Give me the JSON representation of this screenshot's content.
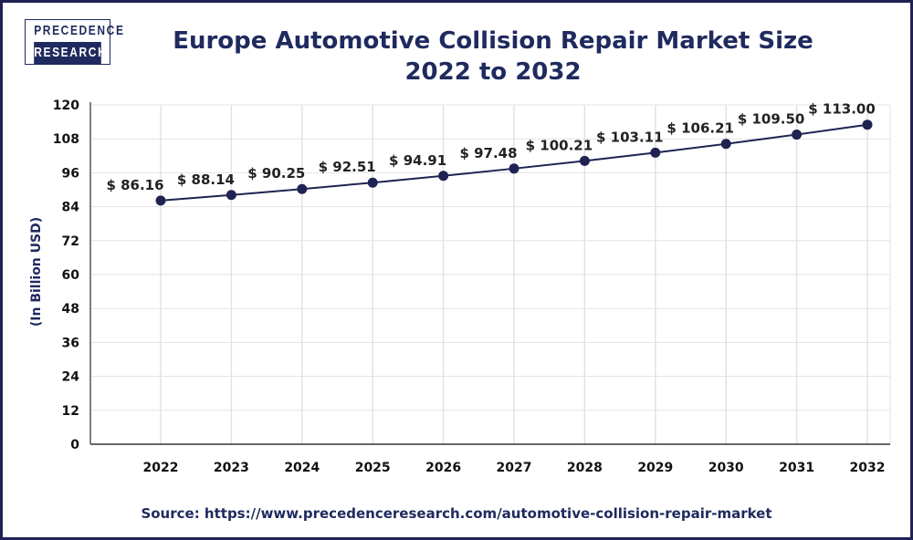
{
  "logo": {
    "line1": "PRECEDENCE",
    "line2": "RESEARCH"
  },
  "colors": {
    "line": "#1f2353",
    "title": "#1f2a5e",
    "grid": "#e3e3e3"
  },
  "source": "Source: https://www.precedenceresearch.com/automotive-collision-repair-market",
  "chart_data": {
    "type": "line",
    "title": "Europe Automotive Collision Repair Market Size",
    "subtitle": "2022 to 2032",
    "ylabel": "(In Billion USD)",
    "xlabel": "",
    "ylim": [
      0,
      120
    ],
    "yticks": [
      "0",
      "12",
      "24",
      "36",
      "48",
      "60",
      "72",
      "84",
      "96",
      "108",
      "120"
    ],
    "categories": [
      "2022",
      "2023",
      "2024",
      "2025",
      "2026",
      "2027",
      "2028",
      "2029",
      "2030",
      "2031",
      "2032"
    ],
    "values": [
      86.16,
      88.14,
      90.25,
      92.51,
      94.91,
      97.48,
      100.21,
      103.11,
      106.21,
      109.5,
      113.0
    ],
    "data_labels": [
      "$ 86.16",
      "$ 88.14",
      "$ 90.25",
      "$ 92.51",
      "$ 94.91",
      "$ 97.48",
      "$ 100.21",
      "$ 103.11",
      "$ 106.21",
      "$ 109.50",
      "$ 113.00"
    ],
    "grid": true,
    "legend": "none"
  }
}
